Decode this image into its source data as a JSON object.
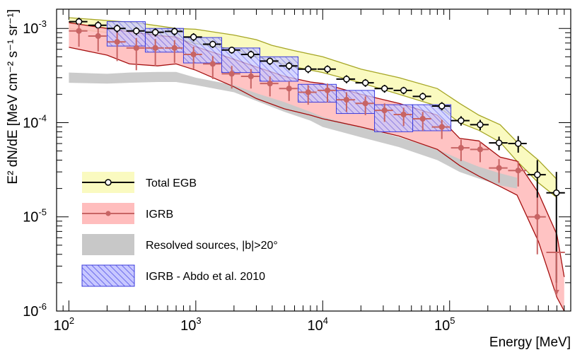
{
  "chart_data": {
    "type": "scatter",
    "x_scale": "log",
    "y_scale": "log",
    "xlim": [
      80,
      900000
    ],
    "ylim": [
      1e-06,
      0.0016
    ],
    "xlabel": "Energy [MeV]",
    "ylabel": "E² dN/dE [MeV cm⁻² s⁻¹ sr⁻¹]",
    "x_ticks": [
      {
        "value": 100,
        "base": "10",
        "exp": "2"
      },
      {
        "value": 1000,
        "base": "10",
        "exp": "3"
      },
      {
        "value": 10000,
        "base": "10",
        "exp": "4"
      },
      {
        "value": 100000,
        "base": "10",
        "exp": "5"
      }
    ],
    "y_ticks": [
      {
        "value": 0.001,
        "base": "10",
        "exp": "-3"
      },
      {
        "value": 0.0001,
        "base": "10",
        "exp": "-4"
      },
      {
        "value": 1e-05,
        "base": "10",
        "exp": "-5"
      },
      {
        "value": 1e-06,
        "base": "10",
        "exp": "-6"
      }
    ],
    "legend": {
      "position": "lower-left",
      "entries": [
        {
          "key": "total",
          "label": "Total EGB"
        },
        {
          "key": "igrb",
          "label": "IGRB"
        },
        {
          "key": "resolved",
          "label": "Resolved sources, |b|>20°"
        },
        {
          "key": "abdo",
          "label": "IGRB - Abdo et al. 2010"
        }
      ]
    },
    "colors": {
      "total_marker": "#000000",
      "total_band_fill": "#fafac0",
      "total_band_edge": "#a6a626",
      "igrb_marker": "#c86464",
      "igrb_band_fill": "#ffbdbd",
      "igrb_band_edge": "#a50f0f",
      "resolved_fill": "#c8c8c8",
      "abdo_fill": "#a0a0ff",
      "abdo_edge": "#3c3cdc"
    },
    "series": [
      {
        "name": "Total EGB",
        "key": "total",
        "x": [
          120,
          170,
          240,
          340,
          480,
          680,
          960,
          1360,
          1920,
          2720,
          3840,
          5430,
          7680,
          10900,
          15400,
          21700,
          30700,
          43400,
          61400,
          86800,
          123000,
          174000,
          245000,
          347000,
          491000,
          694000
        ],
        "xerr_lo": [
          20,
          28,
          40,
          56,
          80,
          110,
          160,
          220,
          320,
          450,
          640,
          900,
          1280,
          1800,
          2600,
          3600,
          5100,
          7200,
          10200,
          14400,
          20500,
          29000,
          41000,
          58000,
          82000,
          116000
        ],
        "xerr_hi": [
          20,
          28,
          40,
          56,
          80,
          110,
          160,
          220,
          320,
          450,
          640,
          900,
          1280,
          1800,
          2600,
          3600,
          5100,
          7200,
          10200,
          14400,
          20500,
          29000,
          41000,
          58000,
          82000,
          116000
        ],
        "y": [
          0.00118,
          0.00108,
          0.001,
          0.00094,
          0.00091,
          0.00093,
          0.00081,
          0.00068,
          0.00059,
          0.00053,
          0.00045,
          0.0004,
          0.00037,
          0.00037,
          0.00029,
          0.000265,
          0.00023,
          0.00022,
          0.00019,
          0.00015,
          0.000105,
          9.5e-05,
          6.1e-05,
          6e-05,
          2.8e-05,
          1.8e-05
        ],
        "yerr_lo": [
          0.00012,
          0.00011,
          0.0001,
          9e-05,
          9e-05,
          9e-05,
          8e-05,
          6e-05,
          5e-05,
          5e-05,
          4e-05,
          4e-05,
          3.5e-05,
          3.5e-05,
          2.8e-05,
          2.5e-05,
          2.2e-05,
          2e-05,
          1.8e-05,
          1.5e-05,
          1.2e-05,
          1.2e-05,
          1e-05,
          1.2e-05,
          1.2e-05,
          1.6e-05
        ],
        "yerr_hi": [
          0.00012,
          0.00011,
          0.0001,
          9e-05,
          9e-05,
          9e-05,
          8e-05,
          6e-05,
          5e-05,
          5e-05,
          4e-05,
          4e-05,
          3.5e-05,
          3.5e-05,
          2.8e-05,
          2.5e-05,
          2.2e-05,
          2e-05,
          1.8e-05,
          1.5e-05,
          1.2e-05,
          1.2e-05,
          1e-05,
          1.2e-05,
          1.2e-05,
          1.2e-05
        ]
      },
      {
        "name": "IGRB",
        "key": "igrb",
        "x": [
          120,
          170,
          240,
          340,
          480,
          680,
          960,
          1360,
          1920,
          2720,
          3840,
          5430,
          7680,
          10900,
          15400,
          21700,
          30700,
          43400,
          61400,
          86800,
          123000,
          174000,
          245000,
          347000,
          491000,
          694000
        ],
        "xerr_lo": [
          20,
          28,
          40,
          56,
          80,
          110,
          160,
          220,
          320,
          450,
          640,
          900,
          1280,
          1800,
          2600,
          3600,
          5100,
          7200,
          10200,
          14400,
          20500,
          29000,
          41000,
          58000,
          82000,
          116000
        ],
        "xerr_hi": [
          20,
          28,
          40,
          56,
          80,
          110,
          160,
          220,
          320,
          450,
          640,
          900,
          1280,
          1800,
          2600,
          3600,
          5100,
          7200,
          10200,
          14400,
          20500,
          29000,
          41000,
          58000,
          82000,
          116000
        ],
        "y": [
          0.00094,
          0.00083,
          0.00072,
          0.00062,
          0.00062,
          0.00062,
          0.00053,
          0.00042,
          0.00033,
          0.00031,
          0.00026,
          0.00023,
          0.00021,
          0.00022,
          0.000175,
          0.00016,
          0.000135,
          0.000122,
          0.00011,
          9e-05,
          5.4e-05,
          5.2e-05,
          3.3e-05,
          3.1e-05,
          1e-05,
          4.2e-06
        ],
        "yerr_lo": [
          0.0003,
          0.00026,
          0.00027,
          0.00026,
          0.00022,
          0.00019,
          0.00016,
          0.00013,
          0.0001,
          8e-05,
          7e-05,
          6e-05,
          5.5e-05,
          5.5e-05,
          4.5e-05,
          4e-05,
          3.3e-05,
          3e-05,
          2.8e-05,
          2.3e-05,
          1.5e-05,
          1.4e-05,
          1e-05,
          1e-05,
          6e-06,
          2.7e-06
        ],
        "yerr_hi": [
          0.0002,
          0.00018,
          0.00018,
          0.00017,
          0.00015,
          0.00013,
          0.00011,
          9e-05,
          7e-05,
          6e-05,
          5e-05,
          4.5e-05,
          4e-05,
          4e-05,
          3.5e-05,
          3e-05,
          2.5e-05,
          2.2e-05,
          2e-05,
          1.7e-05,
          1.2e-05,
          1.1e-05,
          8e-06,
          8e-06,
          6e-06,
          0
        ],
        "upper_limit_last": true
      }
    ],
    "bands": {
      "total_upper": {
        "x": [
          100,
          340,
          700,
          1000,
          2000,
          3000,
          4000,
          6000,
          10000,
          20000,
          40000,
          80000,
          120000,
          170000,
          250000,
          340000,
          500000,
          700000
        ],
        "y": [
          0.0013,
          0.00115,
          0.001,
          0.00098,
          0.00085,
          0.00076,
          0.00066,
          0.00058,
          0.0005,
          0.00037,
          0.0003,
          0.00023,
          0.00016,
          0.00012,
          9.5e-05,
          6.2e-05,
          4e-05,
          2.5e-05
        ]
      },
      "total_lower": {
        "x": [
          100,
          340,
          700,
          1000,
          2000,
          3000,
          4000,
          6000,
          10000,
          20000,
          40000,
          80000,
          120000,
          170000,
          250000,
          340000,
          500000,
          700000
        ],
        "y": [
          0.001,
          0.00084,
          0.00078,
          0.00069,
          0.0006,
          0.0005,
          0.00045,
          0.00039,
          0.00034,
          0.000265,
          0.0002,
          0.00015,
          0.0001,
          8.3e-05,
          6.2e-05,
          3.9e-05,
          2.3e-05,
          1.6e-05
        ]
      },
      "igrb_upper": {
        "x": [
          100,
          200,
          300,
          500,
          700,
          1000,
          2000,
          3000,
          5000,
          8000,
          10000,
          20000,
          40000,
          80000,
          120000,
          170000,
          250000,
          340000,
          500000,
          700000,
          800000
        ],
        "y": [
          0.00115,
          0.001,
          0.00092,
          0.00084,
          0.00081,
          0.00064,
          0.00047,
          0.00039,
          0.00031,
          0.00027,
          0.00026,
          0.0002,
          0.00016,
          0.00012,
          6.8e-05,
          6.4e-05,
          4.3e-05,
          3.9e-05,
          1.8e-05,
          6.5e-06,
          2.3e-06
        ]
      },
      "igrb_lower": {
        "x": [
          100,
          200,
          300,
          500,
          700,
          1000,
          2000,
          3000,
          5000,
          8000,
          10000,
          20000,
          40000,
          80000,
          120000,
          170000,
          250000,
          340000,
          500000,
          700000,
          800000
        ],
        "y": [
          0.00063,
          0.00052,
          0.00042,
          0.0004,
          0.00042,
          0.00036,
          0.00024,
          0.00018,
          0.00014,
          0.00012,
          0.00011,
          9e-05,
          7.2e-05,
          5.2e-05,
          3.5e-05,
          2.7e-05,
          2.1e-05,
          1.7e-05,
          5.5e-06,
          1.4e-06,
          1e-06
        ]
      },
      "resolved_upper": {
        "x": [
          100,
          200,
          300,
          500,
          700,
          1000,
          2000,
          3000,
          5000,
          8000,
          10000,
          20000,
          40000,
          80000,
          120000,
          170000,
          250000,
          340000
        ],
        "y": [
          0.00034,
          0.00033,
          0.00034,
          0.000345,
          0.000345,
          0.0003,
          0.00025,
          0.000205,
          0.000165,
          0.00013,
          0.000115,
          9e-05,
          7e-05,
          5.2e-05,
          4.1e-05,
          3.4e-05,
          2.9e-05,
          2.6e-05
        ]
      },
      "resolved_lower": {
        "x": [
          100,
          200,
          300,
          500,
          700,
          1000,
          2000,
          3000,
          5000,
          8000,
          10000,
          20000,
          40000,
          80000,
          120000,
          170000,
          250000,
          340000
        ],
        "y": [
          0.000265,
          0.00026,
          0.000265,
          0.00027,
          0.00027,
          0.00025,
          0.00021,
          0.00017,
          0.00013,
          0.000105,
          9e-05,
          7e-05,
          5.5e-05,
          4e-05,
          3e-05,
          2.55e-05,
          2.15e-05,
          2e-05
        ]
      },
      "abdo_boxes": [
        {
          "x0": 200,
          "x1": 400,
          "y0": 0.00065,
          "y1": 0.00118
        },
        {
          "x0": 400,
          "x1": 800,
          "y0": 0.00056,
          "y1": 0.001
        },
        {
          "x0": 800,
          "x1": 1600,
          "y0": 0.00043,
          "y1": 0.0008
        },
        {
          "x0": 1600,
          "x1": 3200,
          "y0": 0.00034,
          "y1": 0.00062
        },
        {
          "x0": 3200,
          "x1": 6400,
          "y0": 0.000275,
          "y1": 0.0005
        },
        {
          "x0": 6400,
          "x1": 12800,
          "y0": 0.000165,
          "y1": 0.000255
        },
        {
          "x0": 12800,
          "x1": 25600,
          "y0": 0.000125,
          "y1": 0.00022
        },
        {
          "x0": 25600,
          "x1": 51200,
          "y0": 8e-05,
          "y1": 0.000155
        },
        {
          "x0": 51200,
          "x1": 102400,
          "y0": 8.2e-05,
          "y1": 0.000155
        }
      ]
    }
  }
}
